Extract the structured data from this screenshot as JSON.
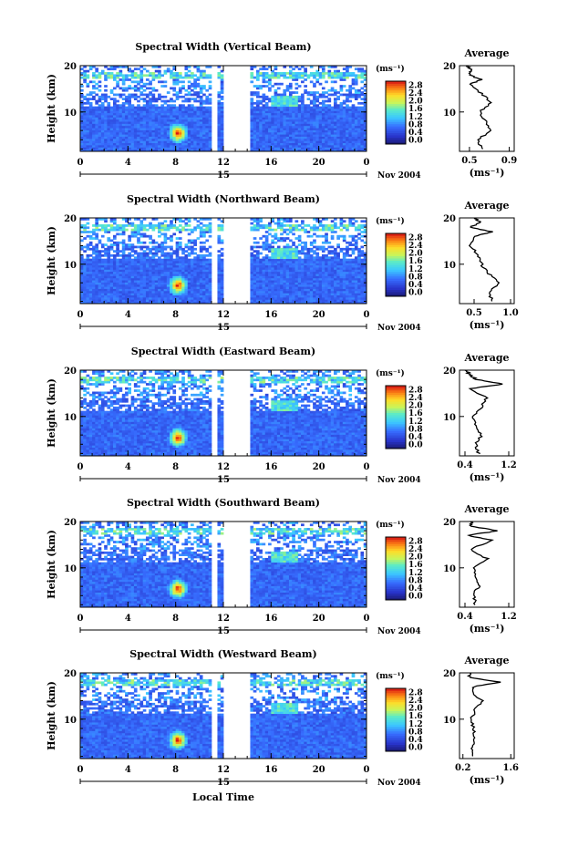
{
  "figure": {
    "x_axis_label": "Local Time",
    "y_axis_label": "Height (km)",
    "date_label": "Nov 2004",
    "day_label": "15",
    "average_title": "Average",
    "colorbar_unit": "(ms⁻¹)",
    "average_unit": "(ms⁻¹)"
  },
  "chart_data": [
    {
      "type": "heatmap",
      "title": "Spectral Width (Vertical Beam)",
      "xlabel": "",
      "ylabel": "Height (km)",
      "x_ticks": [
        "0",
        "4",
        "8",
        "12",
        "16",
        "20",
        "0"
      ],
      "y_ticks": [
        "10",
        "20"
      ],
      "xlim": [
        0,
        24
      ],
      "ylim": [
        1.5,
        20
      ],
      "colorbar_ticks": [
        "0.0",
        "0.4",
        "0.8",
        "1.2",
        "1.6",
        "2.0",
        "2.4",
        "2.8"
      ],
      "average_profile": {
        "type": "line",
        "title": "Average",
        "xlabel": "(ms⁻¹)",
        "x_ticks": [
          "0.5",
          "0.9"
        ],
        "xlim": [
          0.4,
          0.95
        ],
        "y_ticks": [
          "10",
          "20"
        ],
        "ylim": [
          1.5,
          20
        ],
        "heights": [
          2,
          4,
          6,
          8,
          10,
          12,
          14,
          16,
          17,
          18,
          19,
          20
        ],
        "values": [
          0.62,
          0.58,
          0.72,
          0.66,
          0.6,
          0.72,
          0.62,
          0.5,
          0.62,
          0.5,
          0.52,
          0.48
        ]
      }
    },
    {
      "type": "heatmap",
      "title": "Spectral Width (Northward Beam)",
      "xlabel": "",
      "ylabel": "Height (km)",
      "x_ticks": [
        "0",
        "4",
        "8",
        "12",
        "16",
        "20",
        "0"
      ],
      "y_ticks": [
        "10",
        "20"
      ],
      "xlim": [
        0,
        24
      ],
      "ylim": [
        1.5,
        20
      ],
      "colorbar_ticks": [
        "0.0",
        "0.4",
        "0.8",
        "1.2",
        "1.6",
        "2.0",
        "2.4",
        "2.8"
      ],
      "average_profile": {
        "type": "line",
        "title": "Average",
        "xlabel": "(ms⁻¹)",
        "x_ticks": [
          "0.5",
          "1.0"
        ],
        "xlim": [
          0.3,
          1.05
        ],
        "y_ticks": [
          "10",
          "20"
        ],
        "ylim": [
          1.5,
          20
        ],
        "heights": [
          2,
          4,
          6,
          8,
          10,
          12,
          14,
          16,
          17,
          18,
          19,
          20
        ],
        "values": [
          0.75,
          0.7,
          0.85,
          0.7,
          0.6,
          0.55,
          0.45,
          0.5,
          0.75,
          0.45,
          0.6,
          0.5
        ]
      }
    },
    {
      "type": "heatmap",
      "title": "Spectral Width (Eastward Beam)",
      "xlabel": "",
      "ylabel": "Height (km)",
      "x_ticks": [
        "0",
        "4",
        "8",
        "12",
        "16",
        "20",
        "0"
      ],
      "y_ticks": [
        "10",
        "20"
      ],
      "xlim": [
        0,
        24
      ],
      "ylim": [
        1.5,
        20
      ],
      "colorbar_ticks": [
        "0.0",
        "0.4",
        "0.8",
        "1.2",
        "1.6",
        "2.0",
        "2.4",
        "2.8"
      ],
      "average_profile": {
        "type": "line",
        "title": "Average",
        "xlabel": "(ms⁻¹)",
        "x_ticks": [
          "0.4",
          "1.2"
        ],
        "xlim": [
          0.3,
          1.3
        ],
        "y_ticks": [
          "10",
          "20"
        ],
        "ylim": [
          1.5,
          20
        ],
        "heights": [
          2,
          4,
          6,
          8,
          10,
          12,
          14,
          16,
          17,
          18,
          19,
          20
        ],
        "values": [
          0.65,
          0.6,
          0.7,
          0.6,
          0.55,
          0.7,
          0.8,
          0.5,
          1.1,
          0.6,
          0.5,
          0.4
        ]
      }
    },
    {
      "type": "heatmap",
      "title": "Spectral Width (Southward Beam)",
      "xlabel": "",
      "ylabel": "Height (km)",
      "x_ticks": [
        "0",
        "4",
        "8",
        "12",
        "16",
        "20",
        "0"
      ],
      "y_ticks": [
        "10",
        "20"
      ],
      "xlim": [
        0,
        24
      ],
      "ylim": [
        1.5,
        20
      ],
      "colorbar_ticks": [
        "0.0",
        "0.4",
        "0.8",
        "1.2",
        "1.6",
        "2.0",
        "2.4",
        "2.8"
      ],
      "average_profile": {
        "type": "line",
        "title": "Average",
        "xlabel": "(ms⁻¹)",
        "x_ticks": [
          "0.4",
          "1.2"
        ],
        "xlim": [
          0.3,
          1.3
        ],
        "y_ticks": [
          "10",
          "20"
        ],
        "ylim": [
          1.5,
          20
        ],
        "heights": [
          2,
          4,
          6,
          8,
          10,
          12,
          14,
          16,
          17,
          18,
          19,
          20
        ],
        "values": [
          0.6,
          0.55,
          0.65,
          0.6,
          0.55,
          0.8,
          0.5,
          0.9,
          0.45,
          1.0,
          0.5,
          0.55
        ]
      }
    },
    {
      "type": "heatmap",
      "title": "Spectral Width (Westward Beam)",
      "xlabel": "Local Time",
      "ylabel": "Height (km)",
      "x_ticks": [
        "0",
        "4",
        "8",
        "12",
        "16",
        "20",
        "0"
      ],
      "y_ticks": [
        "10",
        "20"
      ],
      "xlim": [
        0,
        24
      ],
      "ylim": [
        1.5,
        20
      ],
      "colorbar_ticks": [
        "0.0",
        "0.4",
        "0.8",
        "1.2",
        "1.6",
        "2.0",
        "2.4",
        "2.8"
      ],
      "average_profile": {
        "type": "line",
        "title": "Average",
        "xlabel": "(ms⁻¹)",
        "x_ticks": [
          "0.2",
          "1.6"
        ],
        "xlim": [
          0.1,
          1.7
        ],
        "y_ticks": [
          "10",
          "20"
        ],
        "ylim": [
          1.5,
          20
        ],
        "heights": [
          2,
          4,
          6,
          8,
          10,
          12,
          14,
          16,
          17,
          18,
          19,
          20
        ],
        "values": [
          0.5,
          0.45,
          0.55,
          0.5,
          0.45,
          0.55,
          0.75,
          0.45,
          0.5,
          1.3,
          0.4,
          0.4
        ]
      }
    }
  ]
}
